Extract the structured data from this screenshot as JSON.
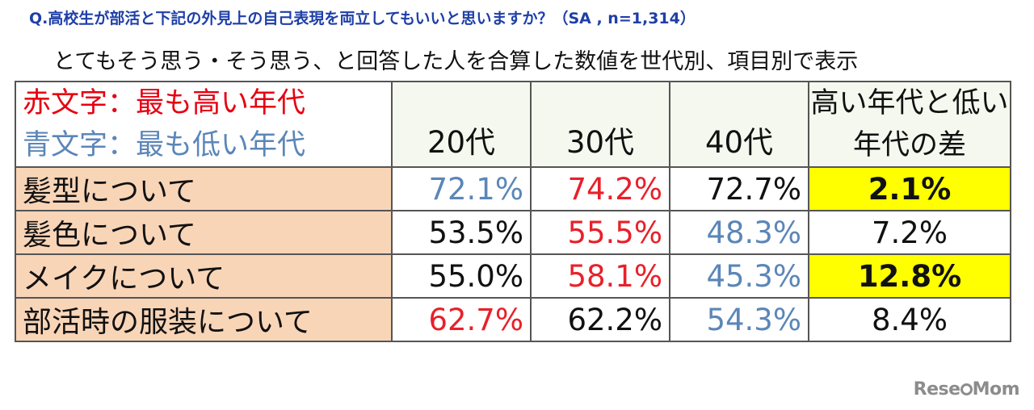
{
  "question": "Q.高校生が部活と下記の外見上の自己表現を両立してもいいと思いますか？（SA , n=1,314）",
  "subtitle": "とてもそう思う・そう思う、と回答した人を合算した数値を世代別、項目別で表示",
  "table": {
    "legend": {
      "red": "赤文字：最も高い年代",
      "blue": "青文字：最も低い年代"
    },
    "headers": [
      "20代",
      "30代",
      "40代",
      "高い年代と低い年代の差"
    ],
    "rows": [
      {
        "label": "髪型について",
        "v20": "72.1%",
        "v30": "74.2%",
        "v40": "72.7%",
        "diff": "2.1%"
      },
      {
        "label": "髪色について",
        "v20": "53.5%",
        "v30": "55.5%",
        "v40": "48.3%",
        "diff": "7.2%"
      },
      {
        "label": "メイクについて",
        "v20": "55.0%",
        "v30": "58.1%",
        "v40": "45.3%",
        "diff": "12.8%"
      },
      {
        "label": "部活時の服装について",
        "v20": "62.7%",
        "v30": "62.2%",
        "v40": "54.3%",
        "diff": "8.4%"
      }
    ]
  },
  "colors": {
    "highest": "#e8202a",
    "lowest": "#5b86b8",
    "label_bg": "#f9d5b8",
    "highlight": "#ffff00"
  },
  "logo": {
    "text_before": "Rese",
    "text_after": "Mom"
  }
}
